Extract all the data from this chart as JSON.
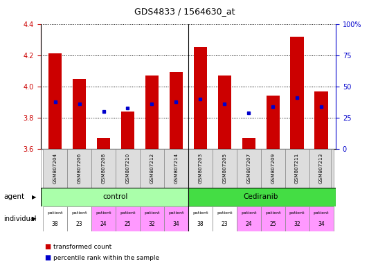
{
  "title": "GDS4833 / 1564630_at",
  "samples": [
    "GSM807204",
    "GSM807206",
    "GSM807208",
    "GSM807210",
    "GSM807212",
    "GSM807214",
    "GSM807203",
    "GSM807205",
    "GSM807207",
    "GSM807209",
    "GSM807211",
    "GSM807213"
  ],
  "bar_values": [
    4.21,
    4.05,
    3.67,
    3.84,
    4.07,
    4.09,
    4.25,
    4.07,
    3.67,
    3.94,
    4.32,
    3.97
  ],
  "percentile_values": [
    3.9,
    3.89,
    3.84,
    3.86,
    3.89,
    3.9,
    3.92,
    3.89,
    3.83,
    3.87,
    3.93,
    3.87
  ],
  "ylim": [
    3.6,
    4.4
  ],
  "yticks": [
    3.6,
    3.8,
    4.0,
    4.2,
    4.4
  ],
  "right_ylabels": [
    "0",
    "25",
    "50",
    "75",
    "100%"
  ],
  "right_tick_positions": [
    3.6,
    3.8,
    4.0,
    4.2,
    4.4
  ],
  "bar_color": "#cc0000",
  "percentile_color": "#0000cc",
  "bar_bottom": 3.6,
  "control_color": "#aaffaa",
  "cediranib_color": "#44dd44",
  "indiv_colors": [
    "#ffffff",
    "#ffffff",
    "#ff99ff",
    "#ff99ff",
    "#ff99ff",
    "#ff99ff",
    "#ffffff",
    "#ffffff",
    "#ff99ff",
    "#ff99ff",
    "#ff99ff",
    "#ff99ff"
  ],
  "patient_nums": [
    "38",
    "23",
    "24",
    "25",
    "32",
    "34",
    "38",
    "23",
    "24",
    "25",
    "32",
    "34"
  ],
  "background_color": "#ffffff",
  "tick_label_color": "#cc0000",
  "right_tick_color": "#0000cc",
  "grid_color": "#000000"
}
